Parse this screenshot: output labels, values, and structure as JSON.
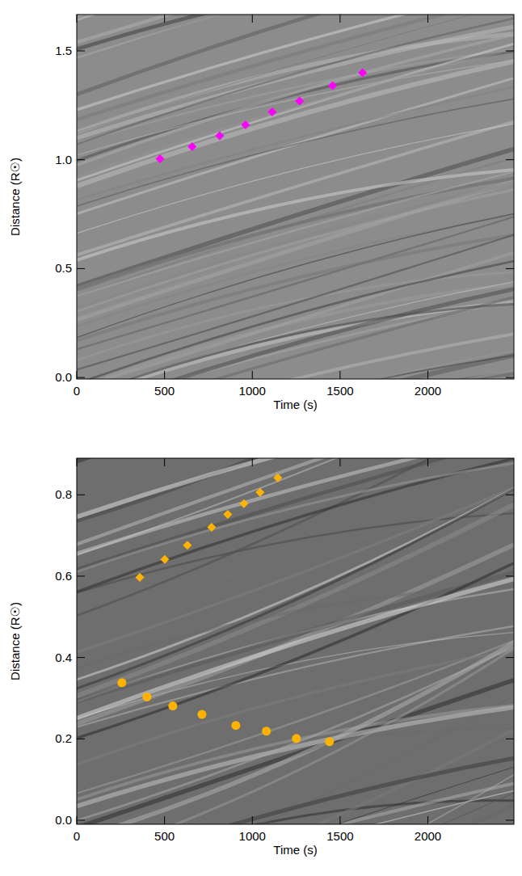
{
  "chart_data": [
    {
      "type": "scatter",
      "x_label": "Time (s)",
      "y_label": "Distance (R☉)",
      "xlim": [
        0,
        2490
      ],
      "ylim": [
        -0.007,
        1.667
      ],
      "xticks": [
        0,
        500,
        1000,
        1500,
        2000
      ],
      "yticks": [
        {
          "value": 0,
          "label": "0.0"
        },
        0.5,
        {
          "value": 1,
          "label": "1.0"
        },
        1.5
      ],
      "series": [
        {
          "color": "#ff00ff",
          "marker": "diamond",
          "x": [
            474,
            657,
            814,
            961,
            1113,
            1269,
            1457,
            1628
          ],
          "values": [
            1.004,
            1.06,
            1.11,
            1.16,
            1.22,
            1.27,
            1.34,
            1.4
          ]
        }
      ]
    },
    {
      "type": "scatter",
      "x_label": "Time (s)",
      "y_label": "Distance (R☉)",
      "xlim": [
        0,
        2490
      ],
      "ylim": [
        -0.01,
        0.89
      ],
      "xticks": [
        0,
        500,
        1000,
        1500,
        2000
      ],
      "yticks": [
        {
          "value": 0,
          "label": "0.0"
        },
        0.2,
        0.4,
        0.6,
        0.8
      ],
      "series": [
        {
          "color": "#ffb300",
          "marker": "diamond",
          "x": [
            359,
            501,
            630,
            768,
            860,
            952,
            1044,
            1145
          ],
          "values": [
            0.597,
            0.641,
            0.676,
            0.72,
            0.752,
            0.778,
            0.806,
            0.842
          ]
        },
        {
          "color": "#ffb300",
          "marker": "circle",
          "x": [
            257,
            400,
            547,
            713,
            906,
            1080,
            1251,
            1439
          ],
          "values": [
            0.338,
            0.303,
            0.281,
            0.26,
            0.233,
            0.219,
            0.201,
            0.193
          ]
        }
      ]
    }
  ]
}
